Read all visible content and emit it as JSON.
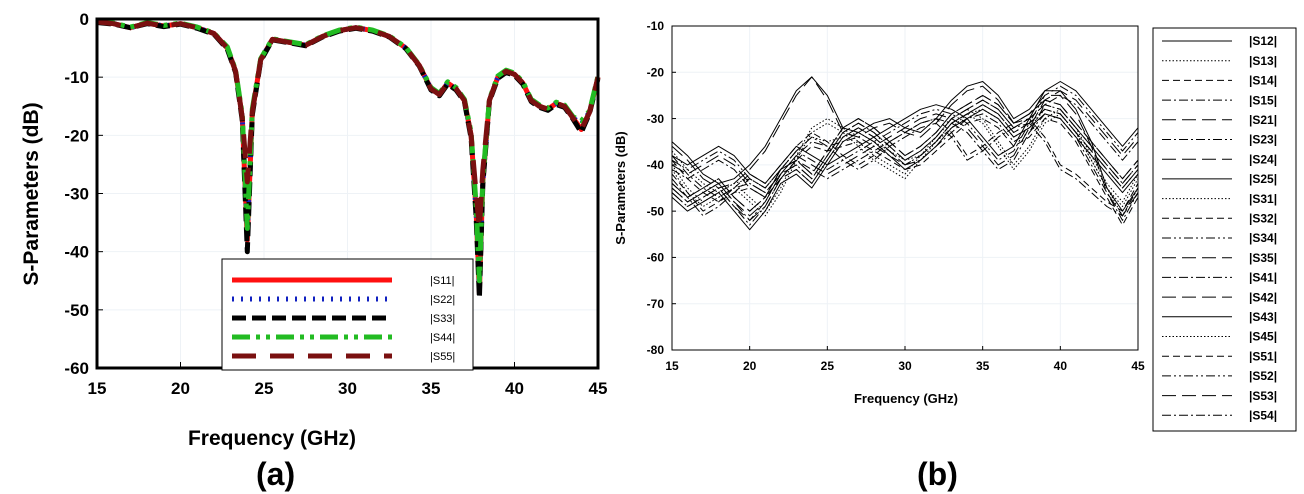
{
  "panels": {
    "a": "(a)",
    "b": "(b)"
  },
  "chart_data": [
    {
      "type": "line",
      "xlabel": "Frequency (GHz)",
      "ylabel": "S-Parameters (dB)",
      "xlim": [
        15,
        45
      ],
      "ylim": [
        -60,
        0
      ],
      "xticks": [
        15,
        20,
        25,
        30,
        35,
        40,
        45
      ],
      "yticks": [
        0,
        -10,
        -20,
        -30,
        -40,
        -50,
        -60
      ],
      "grid": false,
      "legend_position": "bottom-right",
      "x": [
        15,
        16,
        17,
        18,
        19,
        20,
        21,
        22,
        22.8,
        23.3,
        23.7,
        24,
        24.3,
        24.8,
        25.5,
        26.5,
        27.5,
        28.5,
        29.5,
        30.5,
        31.5,
        32.5,
        33.5,
        34.3,
        35,
        35.5,
        36,
        36.5,
        37,
        37.4,
        37.7,
        37.9,
        38.1,
        38.5,
        39,
        39.5,
        40,
        40.5,
        41,
        41.5,
        42,
        42.5,
        43,
        43.5,
        44,
        44.5,
        45
      ],
      "series": [
        {
          "name": "|S11|",
          "color": "#ff1010",
          "style": "solid",
          "values": [
            -0.5,
            -0.8,
            -1.5,
            -0.7,
            -1.2,
            -0.8,
            -1.5,
            -2.5,
            -5,
            -9,
            -17,
            -38,
            -16,
            -7,
            -3.5,
            -4,
            -4.5,
            -3,
            -2,
            -1.5,
            -2,
            -3,
            -5,
            -8,
            -12,
            -13,
            -11,
            -12,
            -14,
            -20,
            -33,
            -47,
            -28,
            -14,
            -10,
            -9,
            -9.5,
            -11,
            -14,
            -15,
            -15.5,
            -14.5,
            -15,
            -17,
            -19,
            -16,
            -10
          ]
        },
        {
          "name": "|S22|",
          "color": "#1020c0",
          "style": "dotted",
          "values": [
            -0.5,
            -0.8,
            -1.5,
            -0.7,
            -1.2,
            -0.8,
            -1.5,
            -2.5,
            -5,
            -9,
            -17,
            -37,
            -16,
            -7,
            -3.5,
            -4,
            -4.5,
            -3,
            -2,
            -1.5,
            -2,
            -3,
            -5,
            -8,
            -12,
            -13,
            -11,
            -12,
            -14,
            -20,
            -33,
            -46,
            -28,
            -14,
            -10,
            -9,
            -9.5,
            -11,
            -14,
            -15,
            -15.5,
            -14.5,
            -15,
            -17,
            -18,
            -16,
            -10
          ]
        },
        {
          "name": "|S33|",
          "color": "#000000",
          "style": "dashed",
          "values": [
            -0.6,
            -0.9,
            -1.5,
            -0.8,
            -1.3,
            -0.9,
            -1.6,
            -2.6,
            -5.2,
            -9.2,
            -17.5,
            -40,
            -16.5,
            -7.2,
            -3.6,
            -4.1,
            -4.6,
            -3.1,
            -2.1,
            -1.6,
            -2.1,
            -3.1,
            -5.1,
            -8.1,
            -12.2,
            -13.2,
            -11.2,
            -12.2,
            -14.2,
            -20.5,
            -34,
            -48,
            -28.5,
            -14.2,
            -10.2,
            -9.2,
            -9.7,
            -11.2,
            -14.2,
            -15.2,
            -15.7,
            -14.7,
            -15.2,
            -17.2,
            -19.5,
            -16.2,
            -10.2
          ]
        },
        {
          "name": "|S44|",
          "color": "#22bb22",
          "style": "dashdotdot",
          "values": [
            -0.4,
            -0.7,
            -1.4,
            -0.6,
            -1.1,
            -0.7,
            -1.4,
            -2.4,
            -4.8,
            -8.8,
            -16.5,
            -36,
            -15.5,
            -6.8,
            -3.4,
            -3.9,
            -4.4,
            -2.9,
            -1.9,
            -1.4,
            -1.9,
            -2.9,
            -4.9,
            -7.9,
            -11.8,
            -12.8,
            -10.8,
            -11.8,
            -13.8,
            -19.5,
            -32,
            -45,
            -27.5,
            -13.8,
            -9.8,
            -8.8,
            -9.3,
            -10.8,
            -13.8,
            -14.8,
            -15.3,
            -14.3,
            -14.8,
            -16.8,
            -17.5,
            -15.8,
            -9.8
          ]
        },
        {
          "name": "|S55|",
          "color": "#7a1010",
          "style": "longdash",
          "values": [
            -0.5,
            -0.8,
            -1.5,
            -0.7,
            -1.2,
            -0.8,
            -1.5,
            -2.5,
            -5,
            -9,
            -17,
            -28,
            -16,
            -7,
            -3.5,
            -4,
            -4.5,
            -3,
            -2,
            -1.5,
            -2,
            -3,
            -5,
            -8,
            -12,
            -13,
            -11,
            -12,
            -14,
            -20,
            -30,
            -36,
            -26,
            -14,
            -10,
            -9,
            -9.5,
            -11,
            -14,
            -15,
            -15.5,
            -14.5,
            -15,
            -17,
            -19,
            -16,
            -10
          ]
        }
      ]
    },
    {
      "type": "line",
      "xlabel": "Frequency (GHz)",
      "ylabel": "S-Parameters (dB)",
      "xlim": [
        15,
        45
      ],
      "ylim": [
        -80,
        -10
      ],
      "xticks": [
        15,
        20,
        25,
        30,
        35,
        40,
        45
      ],
      "yticks": [
        -10,
        -20,
        -30,
        -40,
        -50,
        -60,
        -70,
        -80
      ],
      "grid": false,
      "legend_position": "outside-right",
      "x": [
        15,
        16,
        17,
        18,
        19,
        20,
        21,
        22,
        23,
        24,
        25,
        26,
        27,
        28,
        29,
        30,
        31,
        32,
        33,
        34,
        35,
        36,
        37,
        38,
        39,
        40,
        41,
        42,
        43,
        44,
        45
      ],
      "series": [
        {
          "name": "|S12|",
          "style": "solid",
          "values": [
            -35,
            -38,
            -42,
            -44,
            -43,
            -40,
            -36,
            -30,
            -24,
            -21,
            -25,
            -32,
            -33,
            -31,
            -30,
            -32,
            -33,
            -30,
            -26,
            -23,
            -22,
            -25,
            -30,
            -28,
            -24,
            -24,
            -28,
            -35,
            -45,
            -50,
            -45
          ]
        },
        {
          "name": "|S13|",
          "style": "dotted",
          "values": [
            -40,
            -45,
            -48,
            -46,
            -44,
            -47,
            -50,
            -45,
            -38,
            -32,
            -30,
            -32,
            -35,
            -38,
            -40,
            -42,
            -38,
            -34,
            -30,
            -28,
            -30,
            -35,
            -40,
            -36,
            -30,
            -28,
            -32,
            -38,
            -44,
            -48,
            -42
          ]
        },
        {
          "name": "|S14|",
          "style": "dashed",
          "values": [
            -42,
            -46,
            -50,
            -48,
            -45,
            -42,
            -44,
            -40,
            -36,
            -33,
            -35,
            -38,
            -40,
            -38,
            -35,
            -33,
            -31,
            -30,
            -33,
            -38,
            -36,
            -33,
            -31,
            -30,
            -34,
            -40,
            -42,
            -45,
            -48,
            -50,
            -44
          ]
        },
        {
          "name": "|S15|",
          "style": "dashdot",
          "values": [
            -45,
            -48,
            -46,
            -44,
            -48,
            -52,
            -48,
            -42,
            -40,
            -43,
            -38,
            -33,
            -31,
            -33,
            -36,
            -39,
            -37,
            -34,
            -30,
            -28,
            -26,
            -28,
            -32,
            -30,
            -27,
            -28,
            -32,
            -36,
            -40,
            -44,
            -40
          ]
        },
        {
          "name": "|S21|",
          "style": "longdash",
          "values": [
            -36,
            -39,
            -43,
            -45,
            -44,
            -41,
            -37,
            -31,
            -25,
            -21,
            -26,
            -33,
            -34,
            -32,
            -31,
            -33,
            -34,
            -31,
            -27,
            -24,
            -23,
            -26,
            -31,
            -29,
            -25,
            -25,
            -29,
            -36,
            -46,
            -51,
            -46
          ]
        },
        {
          "name": "|S23|",
          "style": "dashdot",
          "values": [
            -38,
            -42,
            -45,
            -47,
            -45,
            -44,
            -46,
            -42,
            -38,
            -35,
            -36,
            -35,
            -34,
            -36,
            -38,
            -40,
            -39,
            -36,
            -33,
            -30,
            -29,
            -31,
            -35,
            -33,
            -29,
            -30,
            -34,
            -40,
            -46,
            -52,
            -46
          ]
        },
        {
          "name": "|S24|",
          "style": "longdash",
          "values": [
            -44,
            -47,
            -45,
            -43,
            -47,
            -50,
            -47,
            -41,
            -39,
            -42,
            -37,
            -32,
            -30,
            -32,
            -35,
            -38,
            -36,
            -33,
            -29,
            -27,
            -25,
            -27,
            -31,
            -29,
            -26,
            -27,
            -31,
            -35,
            -39,
            -43,
            -39
          ]
        },
        {
          "name": "|S25|",
          "style": "solid",
          "values": [
            -38,
            -40,
            -38,
            -36,
            -38,
            -42,
            -44,
            -40,
            -36,
            -38,
            -40,
            -38,
            -36,
            -34,
            -32,
            -30,
            -28,
            -27,
            -28,
            -30,
            -34,
            -38,
            -36,
            -30,
            -24,
            -22,
            -24,
            -28,
            -32,
            -36,
            -32
          ]
        },
        {
          "name": "|S31|",
          "style": "dotted",
          "values": [
            -41,
            -46,
            -49,
            -47,
            -45,
            -48,
            -51,
            -46,
            -39,
            -33,
            -31,
            -33,
            -36,
            -39,
            -41,
            -43,
            -39,
            -35,
            -31,
            -29,
            -31,
            -36,
            -41,
            -37,
            -31,
            -29,
            -33,
            -39,
            -45,
            -49,
            -43
          ]
        },
        {
          "name": "|S32|",
          "style": "dashed",
          "values": [
            -39,
            -43,
            -46,
            -48,
            -46,
            -45,
            -47,
            -43,
            -39,
            -36,
            -37,
            -36,
            -35,
            -37,
            -39,
            -41,
            -40,
            -37,
            -34,
            -31,
            -30,
            -32,
            -36,
            -34,
            -30,
            -31,
            -35,
            -41,
            -47,
            -53,
            -47
          ]
        },
        {
          "name": "|S34|",
          "style": "dashdotdot",
          "values": [
            -46,
            -49,
            -47,
            -45,
            -49,
            -53,
            -49,
            -43,
            -41,
            -44,
            -39,
            -34,
            -32,
            -34,
            -37,
            -40,
            -38,
            -35,
            -31,
            -29,
            -27,
            -29,
            -33,
            -31,
            -28,
            -29,
            -33,
            -37,
            -41,
            -45,
            -41
          ]
        },
        {
          "name": "|S35|",
          "style": "longdash",
          "values": [
            -40,
            -42,
            -40,
            -38,
            -40,
            -44,
            -46,
            -42,
            -38,
            -40,
            -42,
            -40,
            -38,
            -36,
            -34,
            -32,
            -30,
            -29,
            -30,
            -32,
            -36,
            -40,
            -38,
            -32,
            -26,
            -24,
            -26,
            -30,
            -34,
            -38,
            -34
          ]
        },
        {
          "name": "|S41|",
          "style": "dashdot",
          "values": [
            -43,
            -47,
            -51,
            -49,
            -46,
            -43,
            -45,
            -41,
            -37,
            -34,
            -36,
            -39,
            -41,
            -39,
            -36,
            -34,
            -32,
            -31,
            -34,
            -39,
            -37,
            -34,
            -32,
            -31,
            -35,
            -41,
            -43,
            -46,
            -49,
            -51,
            -45
          ]
        },
        {
          "name": "|S42|",
          "style": "longdash",
          "values": [
            -45,
            -48,
            -46,
            -44,
            -48,
            -51,
            -48,
            -42,
            -40,
            -43,
            -38,
            -33,
            -31,
            -33,
            -36,
            -39,
            -37,
            -34,
            -30,
            -28,
            -26,
            -28,
            -32,
            -30,
            -27,
            -28,
            -32,
            -36,
            -40,
            -44,
            -40
          ]
        },
        {
          "name": "|S43|",
          "style": "solid",
          "values": [
            -47,
            -50,
            -48,
            -46,
            -50,
            -54,
            -50,
            -44,
            -42,
            -45,
            -40,
            -35,
            -33,
            -35,
            -38,
            -41,
            -39,
            -36,
            -32,
            -30,
            -28,
            -30,
            -34,
            -32,
            -29,
            -30,
            -34,
            -38,
            -42,
            -46,
            -42
          ]
        },
        {
          "name": "|S45|",
          "style": "dotted",
          "values": [
            -37,
            -41,
            -44,
            -46,
            -44,
            -43,
            -45,
            -41,
            -37,
            -34,
            -35,
            -34,
            -33,
            -35,
            -37,
            -39,
            -38,
            -35,
            -32,
            -29,
            -28,
            -30,
            -34,
            -32,
            -28,
            -29,
            -33,
            -39,
            -45,
            -51,
            -45
          ]
        },
        {
          "name": "|S51|",
          "style": "dashed",
          "values": [
            -44,
            -47,
            -45,
            -43,
            -47,
            -50,
            -47,
            -41,
            -39,
            -42,
            -37,
            -32,
            -30,
            -32,
            -35,
            -38,
            -36,
            -33,
            -29,
            -27,
            -25,
            -27,
            -31,
            -29,
            -26,
            -27,
            -31,
            -35,
            -39,
            -43,
            -39
          ]
        },
        {
          "name": "|S52|",
          "style": "dashdotdot",
          "values": [
            -39,
            -41,
            -39,
            -37,
            -39,
            -43,
            -45,
            -41,
            -37,
            -39,
            -41,
            -39,
            -37,
            -35,
            -33,
            -31,
            -29,
            -28,
            -29,
            -31,
            -35,
            -39,
            -37,
            -31,
            -25,
            -23,
            -25,
            -29,
            -33,
            -37,
            -33
          ]
        },
        {
          "name": "|S53|",
          "style": "longdash",
          "values": [
            -46,
            -49,
            -47,
            -45,
            -49,
            -52,
            -49,
            -43,
            -41,
            -44,
            -39,
            -34,
            -32,
            -34,
            -37,
            -40,
            -38,
            -35,
            -31,
            -29,
            -27,
            -29,
            -33,
            -31,
            -28,
            -29,
            -33,
            -37,
            -41,
            -45,
            -41
          ]
        },
        {
          "name": "|S54|",
          "style": "dashdot",
          "values": [
            -41,
            -43,
            -41,
            -39,
            -41,
            -45,
            -47,
            -43,
            -39,
            -41,
            -43,
            -41,
            -39,
            -37,
            -35,
            -33,
            -31,
            -30,
            -31,
            -33,
            -37,
            -41,
            -39,
            -33,
            -27,
            -25,
            -27,
            -31,
            -35,
            -39,
            -35
          ]
        }
      ]
    }
  ]
}
